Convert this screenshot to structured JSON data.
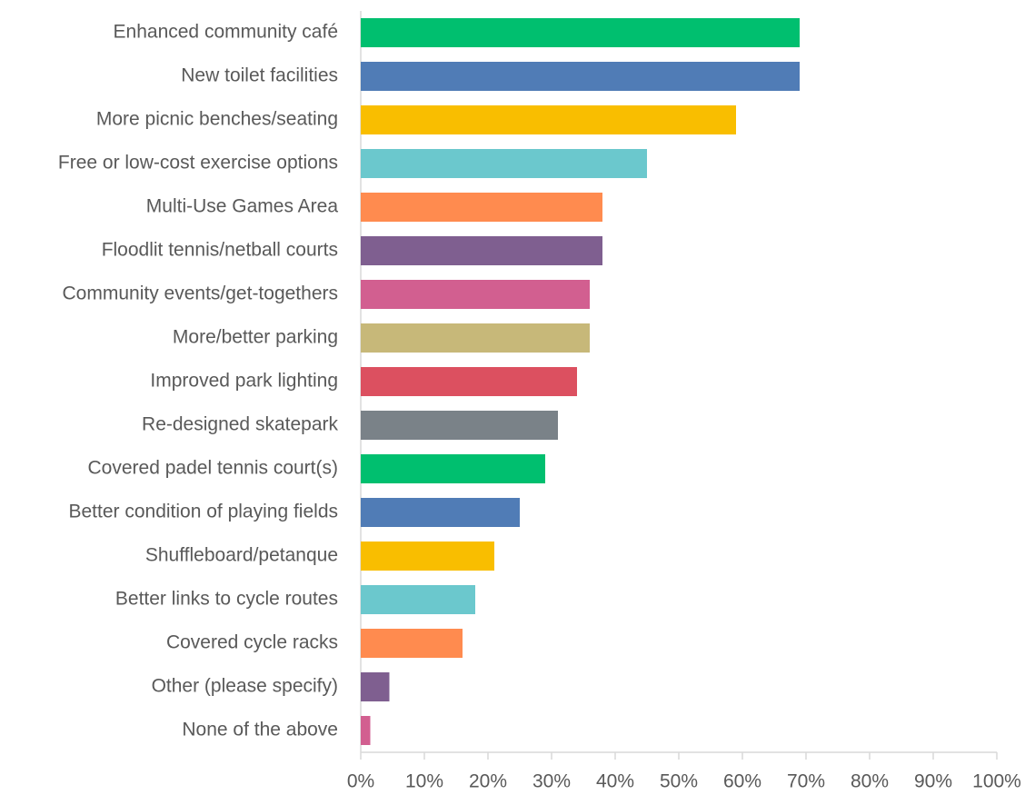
{
  "chart_data": {
    "type": "bar",
    "categories": [
      "Enhanced community café",
      "New toilet facilities",
      "More picnic benches/seating",
      "Free or low-cost exercise options",
      "Multi-Use Games Area",
      "Floodlit tennis/netball courts",
      "Community events/get-togethers",
      "More/better parking",
      "Improved park lighting",
      "Re-designed skatepark",
      "Covered padel tennis court(s)",
      "Better condition of playing fields",
      "Shuffleboard/petanque",
      "Better links to cycle routes",
      "Covered cycle racks",
      "Other (please specify)",
      "None of the above"
    ],
    "values": [
      69,
      69,
      59,
      45,
      38,
      38,
      36,
      36,
      34,
      31,
      29,
      25,
      21,
      18,
      16,
      4.5,
      1.5
    ],
    "colors": [
      "#00bf6f",
      "#507cb6",
      "#f9be00",
      "#6bc8cd",
      "#ff8b4f",
      "#7f5f90",
      "#d25f90",
      "#c7b879",
      "#dc5060",
      "#7a8288",
      "#00bf6f",
      "#507cb6",
      "#f9be00",
      "#6bc8cd",
      "#ff8b4f",
      "#7f5f90",
      "#d25f90"
    ],
    "xlim": [
      0,
      100
    ],
    "xticks": [
      {
        "value": 0,
        "label": "0%"
      },
      {
        "value": 10,
        "label": "10%"
      },
      {
        "value": 20,
        "label": "20%"
      },
      {
        "value": 30,
        "label": "30%"
      },
      {
        "value": 40,
        "label": "40%"
      },
      {
        "value": 50,
        "label": "50%"
      },
      {
        "value": 60,
        "label": "60%"
      },
      {
        "value": 70,
        "label": "70%"
      },
      {
        "value": 80,
        "label": "80%"
      },
      {
        "value": 90,
        "label": "90%"
      },
      {
        "value": 100,
        "label": "100%"
      }
    ]
  }
}
